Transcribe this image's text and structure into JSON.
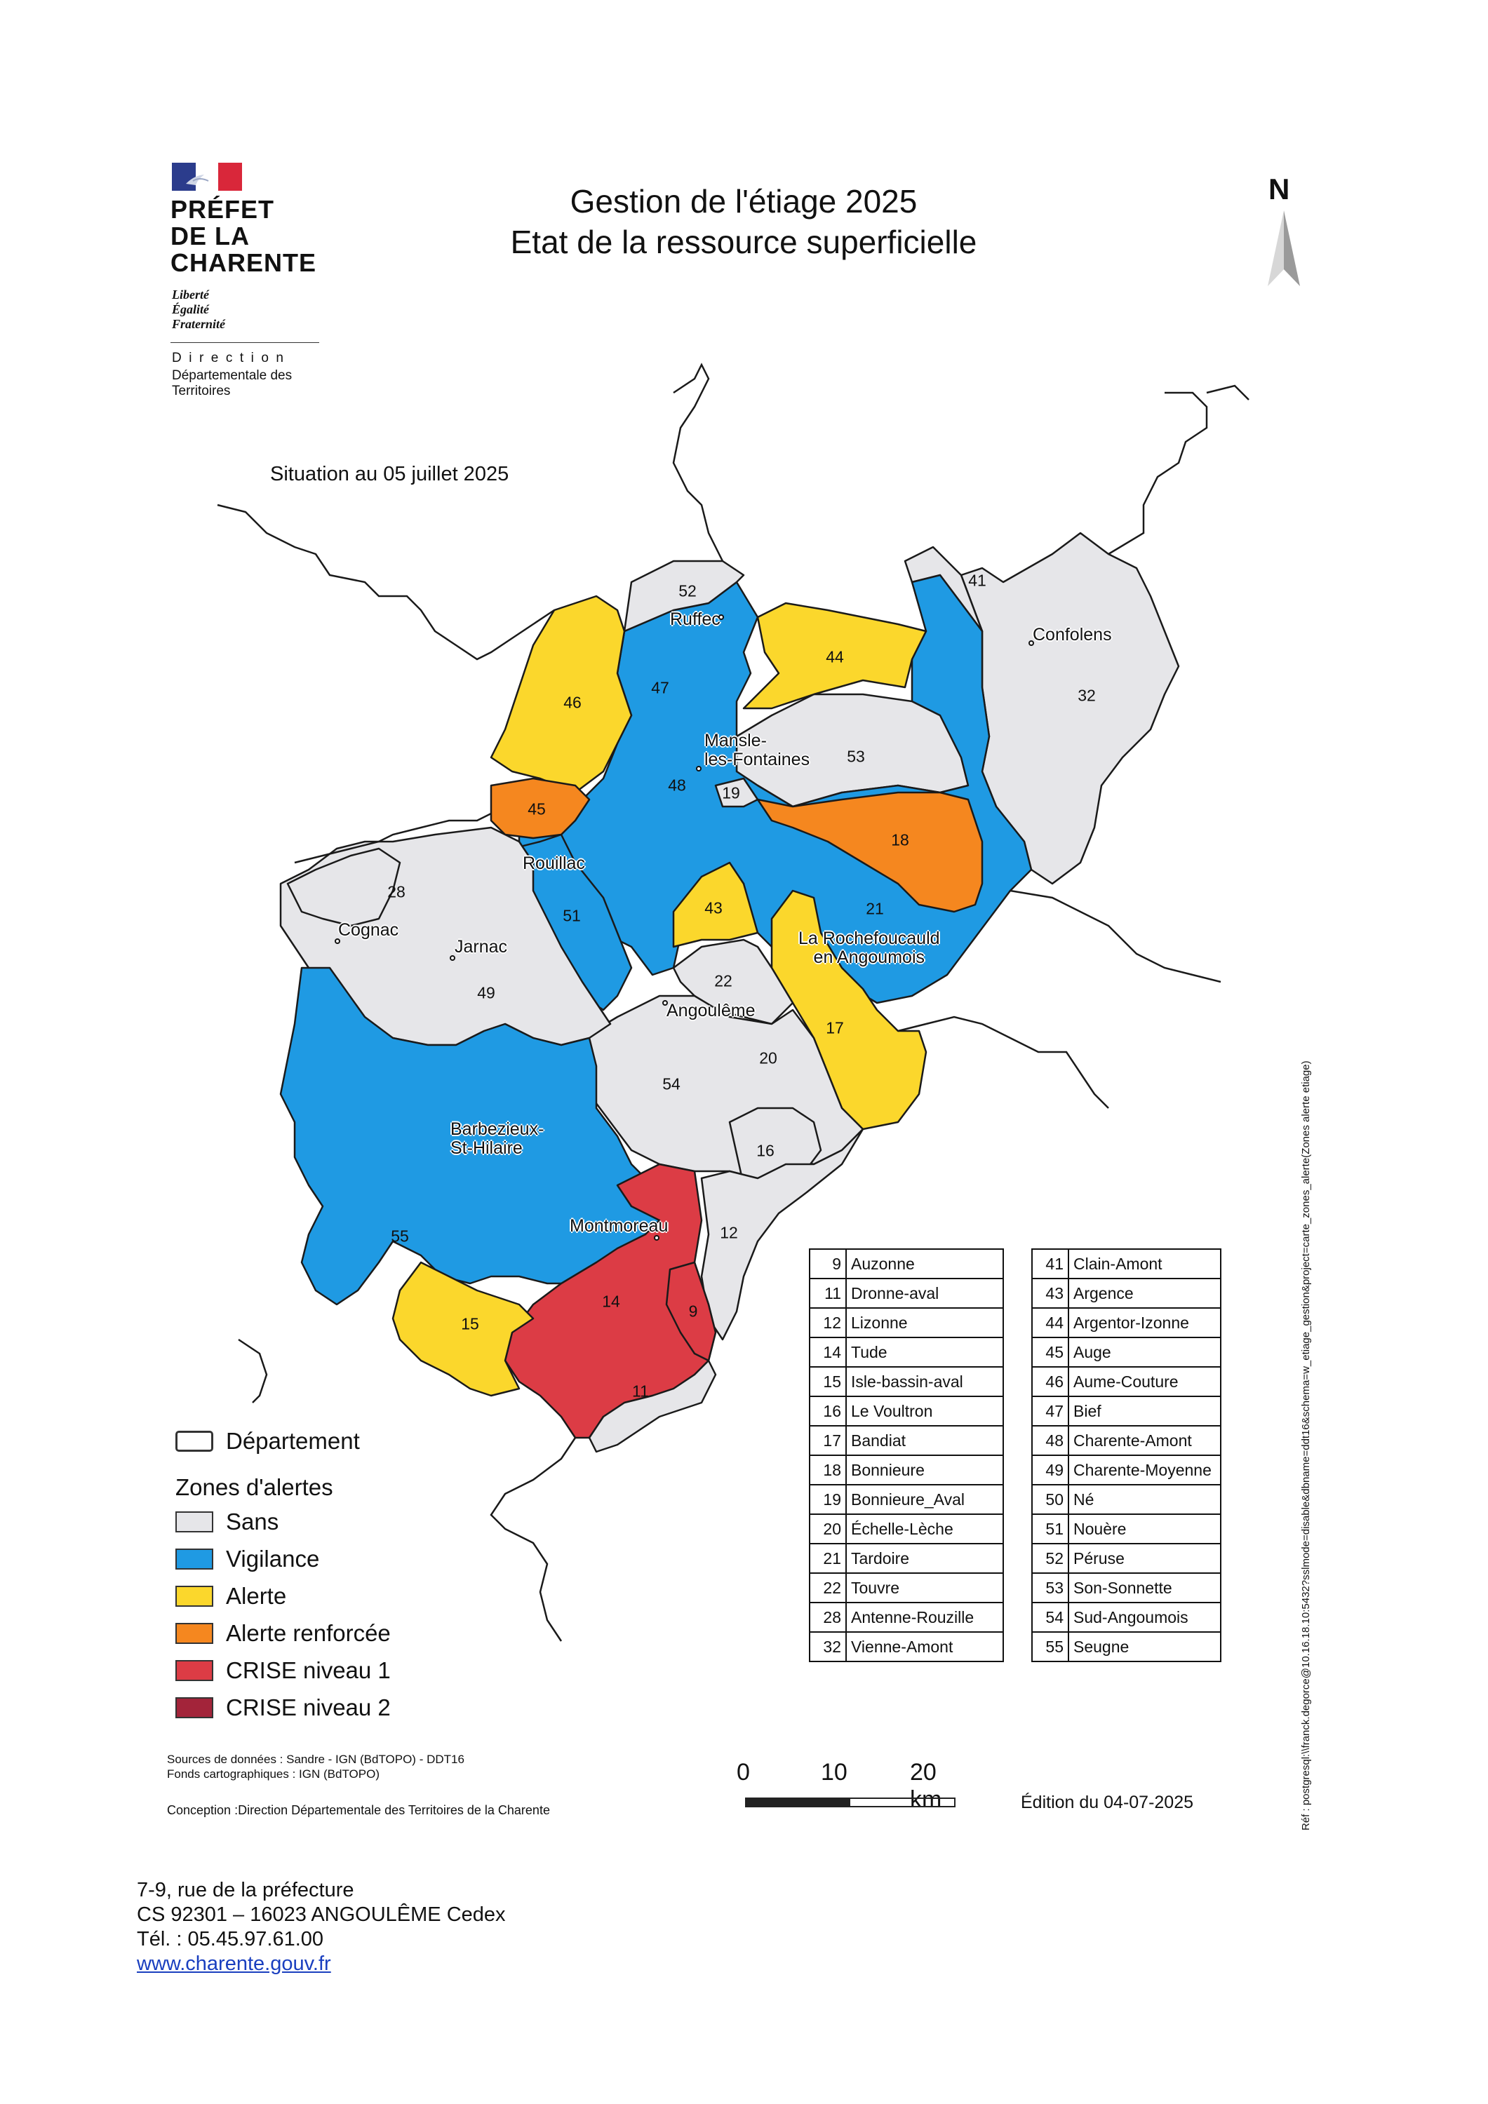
{
  "header": {
    "prefet_name": "PRÉFET\nDE LA\nCHARENTE",
    "devise": "Liberté\nÉgalité\nFraternité",
    "direction": "Direction",
    "direction_sub": "Départementale des\nTerritoires",
    "title_line1": "Gestion de l'étiage 2025",
    "title_line2": "Etat de la ressource superficielle",
    "north": "N",
    "situation": "Situation au 05 juillet 2025"
  },
  "colors": {
    "sans": "#e6e6e9",
    "vigilance": "#1f9ae3",
    "alerte": "#fbd72c",
    "alerte_renforcee": "#f5871f",
    "crise1": "#dc3c45",
    "crise2": "#a3243a",
    "border": "#1a1a1a"
  },
  "legend": {
    "departement": "Département",
    "zones_title": "Zones d'alertes",
    "items": [
      {
        "label": "Sans",
        "color": "#e6e6e9"
      },
      {
        "label": "Vigilance",
        "color": "#1f9ae3"
      },
      {
        "label": "Alerte",
        "color": "#fbd72c"
      },
      {
        "label": "Alerte renforcée",
        "color": "#f5871f"
      },
      {
        "label": "CRISE niveau 1",
        "color": "#dc3c45"
      },
      {
        "label": "CRISE niveau 2",
        "color": "#a3243a"
      }
    ]
  },
  "zones_table_left": [
    {
      "num": "9",
      "name": "Auzonne"
    },
    {
      "num": "11",
      "name": "Dronne-aval"
    },
    {
      "num": "12",
      "name": "Lizonne"
    },
    {
      "num": "14",
      "name": "Tude"
    },
    {
      "num": "15",
      "name": "Isle-bassin-aval"
    },
    {
      "num": "16",
      "name": "Le Voultron"
    },
    {
      "num": "17",
      "name": "Bandiat"
    },
    {
      "num": "18",
      "name": "Bonnieure"
    },
    {
      "num": "19",
      "name": "Bonnieure_Aval"
    },
    {
      "num": "20",
      "name": "Échelle-Lèche"
    },
    {
      "num": "21",
      "name": "Tardoire"
    },
    {
      "num": "22",
      "name": "Touvre"
    },
    {
      "num": "28",
      "name": "Antenne-Rouzille"
    },
    {
      "num": "32",
      "name": "Vienne-Amont"
    }
  ],
  "zones_table_right": [
    {
      "num": "41",
      "name": "Clain-Amont"
    },
    {
      "num": "43",
      "name": "Argence"
    },
    {
      "num": "44",
      "name": "Argentor-Izonne"
    },
    {
      "num": "45",
      "name": "Auge"
    },
    {
      "num": "46",
      "name": "Aume-Couture"
    },
    {
      "num": "47",
      "name": "Bief"
    },
    {
      "num": "48",
      "name": "Charente-Amont"
    },
    {
      "num": "49",
      "name": "Charente-Moyenne"
    },
    {
      "num": "50",
      "name": "Né"
    },
    {
      "num": "51",
      "name": "Nouère"
    },
    {
      "num": "52",
      "name": "Péruse"
    },
    {
      "num": "53",
      "name": "Son-Sonnette"
    },
    {
      "num": "54",
      "name": "Sud-Angoumois"
    },
    {
      "num": "55",
      "name": "Seugne"
    }
  ],
  "zone_numbers": [
    "52",
    "41",
    "44",
    "47",
    "46",
    "32",
    "53",
    "45",
    "19",
    "48",
    "18",
    "28",
    "43",
    "51",
    "21",
    "49",
    "22",
    "17",
    "20",
    "54",
    "16",
    "12",
    "55",
    "14",
    "9",
    "15",
    "11"
  ],
  "cities": {
    "ruffec": "Ruffec",
    "confolens": "Confolens",
    "mansle": "Mansle-\nles-Fontaines",
    "rouillac": "Rouillac",
    "cognac": "Cognac",
    "jarnac": "Jarnac",
    "larochefoucauld": "La Rochefoucauld\nen Angoumois",
    "angouleme": "Angoulême",
    "barbezieux": "Barbezieux-\nSt-Hilaire",
    "montmoreau": "Montmoreau"
  },
  "footer": {
    "sources": "Sources de données : Sandre - IGN (BdTOPO) - DDT16",
    "fonds": "Fonds cartographiques : IGN (BdTOPO)",
    "conception": "Conception :Direction Départementale des Territoires de la Charente",
    "scale_0": "0",
    "scale_10": "10",
    "scale_20": "20 km",
    "edition": "Édition du  04-07-2025",
    "reference": "Réf : postgresql:\\\\franck.degorce@10.16.18.10:5432?sslmode=disable&dbname=ddt16&schema=w_etiage_gestion&project=carte_zones_alerte(Zones alerte etiage)",
    "address_line1": "7-9, rue de la préfecture",
    "address_line2": "CS 92301 – 16023 ANGOULÊME Cedex",
    "address_tel": "Tél. : 05.45.97.61.00",
    "website": "www.charente.gouv.fr"
  }
}
